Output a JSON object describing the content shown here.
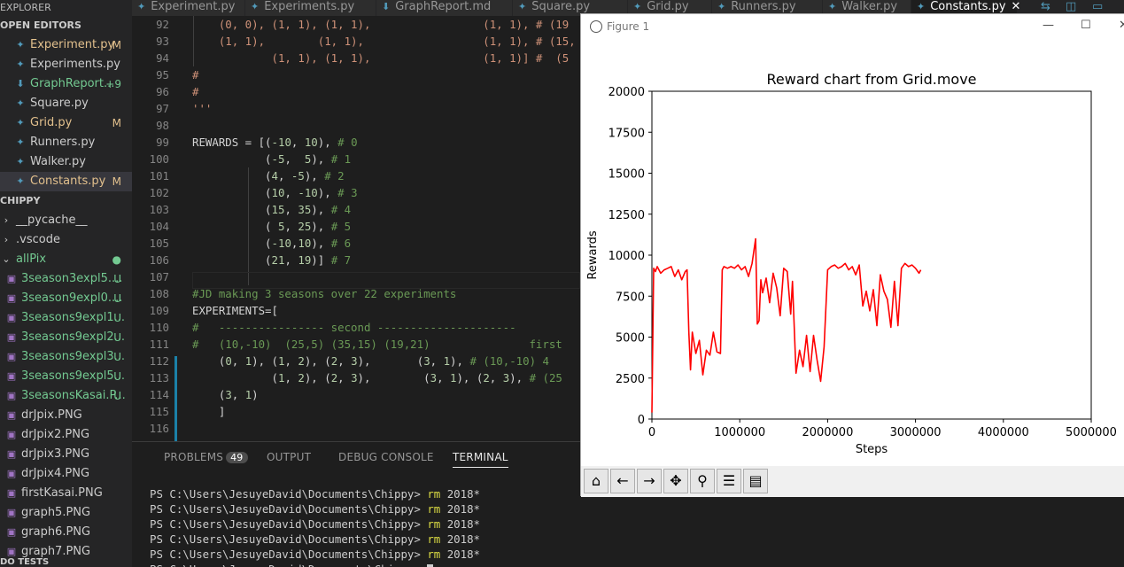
{
  "sidebar": {
    "explorer_label": "EXPLORER",
    "open_editors_label": "OPEN EDITORS",
    "open_editors": [
      {
        "name": "Experiment.py",
        "badge": "M",
        "state": "modified"
      },
      {
        "name": "Experiments.py",
        "badge": "",
        "state": "normal"
      },
      {
        "name": "GraphReport...",
        "badge": "+9",
        "state": "added"
      },
      {
        "name": "Square.py",
        "badge": "",
        "state": "normal"
      },
      {
        "name": "Grid.py",
        "badge": "M",
        "state": "modified"
      },
      {
        "name": "Runners.py",
        "badge": "",
        "state": "normal"
      },
      {
        "name": "Walker.py",
        "badge": "",
        "state": "normal"
      },
      {
        "name": "Constants.py",
        "badge": "M",
        "state": "modified"
      }
    ],
    "project_label": "CHIPPY",
    "folders": [
      {
        "name": "__pycache__",
        "chevron": "›"
      },
      {
        "name": ".vscode",
        "chevron": "›"
      },
      {
        "name": "allPix",
        "chevron": "⌄"
      }
    ],
    "files": [
      {
        "name": "3season3expl5....",
        "badge": "U"
      },
      {
        "name": "3season9expl0....",
        "badge": "U"
      },
      {
        "name": "3seasons9expl1...",
        "badge": "U"
      },
      {
        "name": "3seasons9expl2...",
        "badge": "U"
      },
      {
        "name": "3seasons9expl3...",
        "badge": "U"
      },
      {
        "name": "3seasons9expl5...",
        "badge": "U"
      },
      {
        "name": "3seasonsKasai.P...",
        "badge": "U"
      },
      {
        "name": "drJpix.PNG",
        "badge": ""
      },
      {
        "name": "drJpix2.PNG",
        "badge": ""
      },
      {
        "name": "drJpix3.PNG",
        "badge": ""
      },
      {
        "name": "drJpix4.PNG",
        "badge": ""
      },
      {
        "name": "firstKasai.PNG",
        "badge": ""
      },
      {
        "name": "graph5.PNG",
        "badge": ""
      },
      {
        "name": "graph6.PNG",
        "badge": ""
      },
      {
        "name": "graph7.PNG",
        "badge": ""
      }
    ],
    "footer_label": "DO TESTS"
  },
  "tabs": [
    {
      "label": "Experiment.py"
    },
    {
      "label": "Experiments.py"
    },
    {
      "label": "GraphReport.md"
    },
    {
      "label": "Square.py"
    },
    {
      "label": "Grid.py"
    },
    {
      "label": "Runners.py"
    },
    {
      "label": "Walker.py"
    },
    {
      "label": "Constants.py",
      "close": "✕"
    }
  ],
  "editor": {
    "lines": [
      {
        "n": "92",
        "t": "    (0, 0), (1, 1), (1, 1),                 (1, 1), # (19",
        "k": "str"
      },
      {
        "n": "93",
        "t": "    (1, 1),        (1, 1),                  (1, 1), # (15,",
        "k": "str"
      },
      {
        "n": "94",
        "t": "            (1, 1), (1, 1),                 (1, 1)] #  (5",
        "k": "str"
      },
      {
        "n": "95",
        "t": "#",
        "k": "str"
      },
      {
        "n": "96",
        "t": "#",
        "k": "str"
      },
      {
        "n": "97",
        "t": "'''",
        "k": "str"
      },
      {
        "n": "98",
        "t": "",
        "k": "id"
      },
      {
        "n": "99",
        "t": "REWARDS = [(-10, 10), # 0",
        "k": "mixed"
      },
      {
        "n": "100",
        "t": "           (-5,  5), # 1",
        "k": "mixed"
      },
      {
        "n": "101",
        "t": "           (4, -5), # 2",
        "k": "mixed"
      },
      {
        "n": "102",
        "t": "           (10, -10), # 3",
        "k": "mixed"
      },
      {
        "n": "103",
        "t": "           (15, 35), # 4",
        "k": "mixed"
      },
      {
        "n": "104",
        "t": "           ( 5, 25), # 5",
        "k": "mixed"
      },
      {
        "n": "105",
        "t": "           (-10,10), # 6",
        "k": "mixed"
      },
      {
        "n": "106",
        "t": "           (21, 19)] # 7",
        "k": "mixed"
      },
      {
        "n": "107",
        "t": "",
        "k": "id"
      },
      {
        "n": "108",
        "t": "#JD making 3 seasons over 22 experiments",
        "k": "cmt"
      },
      {
        "n": "109",
        "t": "EXPERIMENTS=[",
        "k": "id"
      },
      {
        "n": "110",
        "t": "#   ---------------- second ---------------------",
        "k": "cmt"
      },
      {
        "n": "111",
        "t": "#   (10,-10)  (25,5) (35,15) (19,21)               first",
        "k": "cmt"
      },
      {
        "n": "112",
        "t": "    (0, 1), (1, 2), (2, 3),       (3, 1), # (10,-10) 4",
        "k": "mixed"
      },
      {
        "n": "113",
        "t": "            (1, 2), (2, 3),        (3, 1), (2, 3), # (25",
        "k": "mixed"
      },
      {
        "n": "114",
        "t": "    (3, 1)",
        "k": "mixed"
      },
      {
        "n": "115",
        "t": "    ]",
        "k": "id"
      },
      {
        "n": "116",
        "t": "",
        "k": "id"
      }
    ]
  },
  "panel": {
    "tabs": [
      {
        "label": "PROBLEMS",
        "badge": "49"
      },
      {
        "label": "OUTPUT"
      },
      {
        "label": "DEBUG CONSOLE"
      },
      {
        "label": "TERMINAL"
      }
    ],
    "terminal_lines": [
      {
        "prompt": "PS C:\\Users\\JesuyeDavid\\Documents\\Chippy> ",
        "cmd": "rm",
        "arg": " 2018*"
      },
      {
        "prompt": "PS C:\\Users\\JesuyeDavid\\Documents\\Chippy> ",
        "cmd": "rm",
        "arg": " 2018*"
      },
      {
        "prompt": "PS C:\\Users\\JesuyeDavid\\Documents\\Chippy> ",
        "cmd": "rm",
        "arg": " 2018*"
      },
      {
        "prompt": "PS C:\\Users\\JesuyeDavid\\Documents\\Chippy> ",
        "cmd": "rm",
        "arg": " 2018*"
      },
      {
        "prompt": "PS C:\\Users\\JesuyeDavid\\Documents\\Chippy> ",
        "cmd": "rm",
        "arg": " 2018*"
      },
      {
        "prompt": "PS C:\\Users\\JesuyeDavid\\Documents\\Chippy> ",
        "cmd": "",
        "arg": ""
      }
    ]
  },
  "figure": {
    "window_title": "Figure 1",
    "toolbar": [
      "home-icon",
      "back-arrow-icon",
      "forward-arrow-icon",
      "pan-icon",
      "zoom-icon",
      "configure-subplots-icon",
      "save-icon"
    ]
  },
  "chart_data": {
    "type": "line",
    "title": "Reward chart from Grid.move",
    "xlabel": "Steps",
    "ylabel": "Rewards",
    "xlim": [
      0,
      5000000
    ],
    "ylim": [
      0,
      20000
    ],
    "xticks": [
      0,
      1000000,
      2000000,
      3000000,
      4000000,
      5000000
    ],
    "yticks": [
      0,
      2500,
      5000,
      7500,
      10000,
      12500,
      15000,
      17500,
      20000
    ],
    "grid": false,
    "series": [
      {
        "color": "#ff0000",
        "x": [
          0,
          20000,
          40000,
          60000,
          100000,
          140000,
          180000,
          220000,
          260000,
          300000,
          340000,
          380000,
          400000,
          420000,
          440000,
          460000,
          500000,
          540000,
          580000,
          620000,
          660000,
          700000,
          740000,
          780000,
          800000,
          820000,
          860000,
          900000,
          940000,
          980000,
          1020000,
          1060000,
          1100000,
          1140000,
          1180000,
          1200000,
          1220000,
          1240000,
          1260000,
          1300000,
          1340000,
          1380000,
          1420000,
          1460000,
          1500000,
          1540000,
          1580000,
          1600000,
          1620000,
          1640000,
          1680000,
          1720000,
          1760000,
          1800000,
          1840000,
          1880000,
          1920000,
          1960000,
          2000000,
          2040000,
          2080000,
          2120000,
          2160000,
          2200000,
          2240000,
          2280000,
          2320000,
          2360000,
          2400000,
          2440000,
          2480000,
          2520000,
          2560000,
          2600000,
          2640000,
          2680000,
          2720000,
          2760000,
          2800000,
          2840000,
          2880000,
          2920000,
          2960000,
          3000000,
          3040000,
          3060000
        ],
        "y": [
          400,
          9200,
          9000,
          9300,
          8900,
          9100,
          9200,
          9300,
          8700,
          9100,
          8500,
          9000,
          9100,
          5300,
          3000,
          5300,
          4000,
          4800,
          2700,
          4200,
          3900,
          5300,
          4100,
          4000,
          9100,
          9300,
          9200,
          9300,
          9200,
          9400,
          9100,
          9300,
          8700,
          9500,
          11000,
          5800,
          6000,
          8500,
          7700,
          8600,
          7100,
          8900,
          8000,
          6300,
          9200,
          9000,
          6400,
          8400,
          5600,
          2800,
          4200,
          3200,
          5100,
          2900,
          5100,
          3600,
          2300,
          4400,
          9100,
          9300,
          9400,
          9200,
          9300,
          9500,
          9100,
          9300,
          8800,
          9400,
          6900,
          7800,
          6600,
          7900,
          5700,
          8800,
          7800,
          7300,
          5600,
          8400,
          5700,
          9200,
          9500,
          9300,
          9400,
          9200,
          8900,
          9100
        ]
      }
    ]
  }
}
